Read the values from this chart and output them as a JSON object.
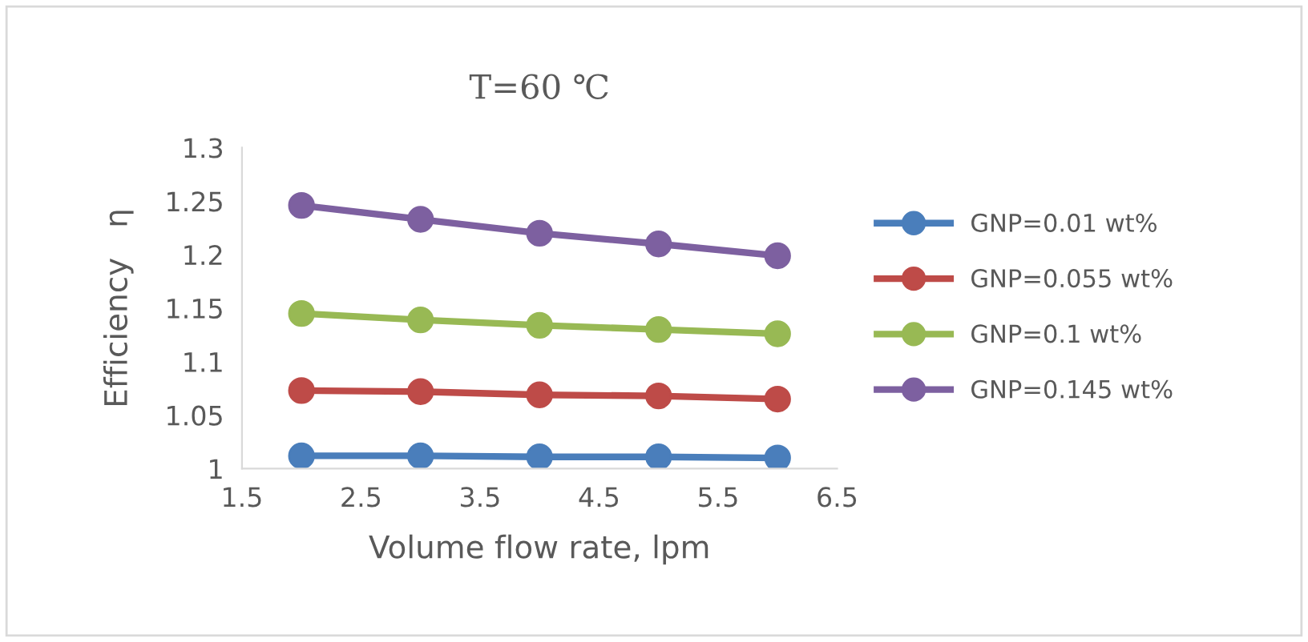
{
  "chart_data": {
    "type": "line",
    "title": "T=60 ℃",
    "xlabel": "Volume flow rate, lpm",
    "ylabel": "Efficiency   η",
    "x": [
      2,
      3,
      4,
      5,
      6
    ],
    "series": [
      {
        "name": "GNP=0.01 wt%",
        "color": "#4a7ebb",
        "values": [
          1.012,
          1.012,
          1.011,
          1.011,
          1.01
        ]
      },
      {
        "name": "GNP=0.055 wt%",
        "color": "#be4b48",
        "values": [
          1.073,
          1.072,
          1.069,
          1.068,
          1.065
        ]
      },
      {
        "name": "GNP=0.1 wt%",
        "color": "#98b954",
        "values": [
          1.145,
          1.139,
          1.134,
          1.13,
          1.126
        ]
      },
      {
        "name": "GNP=0.145 wt%",
        "color": "#7d60a0",
        "values": [
          1.246,
          1.233,
          1.22,
          1.21,
          1.199
        ]
      }
    ],
    "xlim": [
      1.5,
      6.5
    ],
    "xticks": [
      1.5,
      2.5,
      3.5,
      4.5,
      5.5,
      6.5
    ],
    "ylim": [
      1,
      1.3
    ],
    "yticks": [
      1,
      1.05,
      1.1,
      1.15,
      1.2,
      1.25,
      1.3
    ],
    "grid": false,
    "legend": "right",
    "marker": "circle",
    "line_style": "solid"
  }
}
